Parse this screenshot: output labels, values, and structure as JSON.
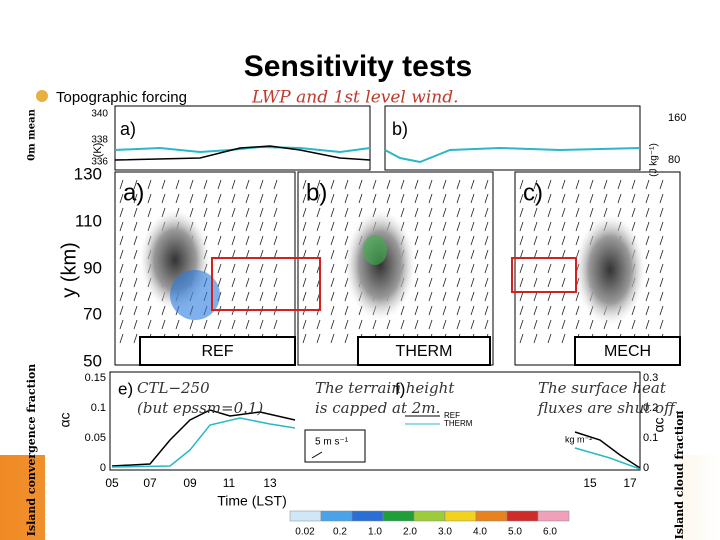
{
  "slide": {
    "title": "Sensitivity tests",
    "bullet": "Topographic forcing",
    "note": "LWP and 1st level wind."
  },
  "figure": {
    "top_panels": {
      "labels": [
        "a)",
        "b)"
      ],
      "left_ticks": [
        "340",
        "338",
        "336"
      ],
      "left_unit": "(K)",
      "right_ticks": [
        "160",
        "80"
      ],
      "right_unit": "(J kg⁻¹)",
      "left_axis_label": "0m mean"
    },
    "map_panels": {
      "y_label": "y (km)",
      "y_ticks": [
        "130",
        "110",
        "90",
        "70",
        "50"
      ],
      "panels": [
        {
          "label": "a)",
          "name": "REF"
        },
        {
          "label": "b)",
          "name": "THERM"
        },
        {
          "label": "c)",
          "name": "MECH"
        }
      ]
    },
    "bottom_panels": {
      "labels": [
        "e)",
        "f)"
      ],
      "left_ticks": [
        "0.15",
        "0.1",
        "0.05",
        "0"
      ],
      "left_symbol": "αc",
      "right_ticks": [
        "0.3",
        "0.2",
        "0.1",
        "0"
      ],
      "right_symbol": "αc",
      "x_label": "Time (LST)",
      "x_ticks": [
        "05",
        "07",
        "09",
        "11",
        "13",
        "15",
        "17"
      ],
      "legend": [
        "REF",
        "THERM"
      ],
      "wind_scale": "5 m s⁻¹",
      "colorbar_unit": "kg m⁻²",
      "colorbar_ticks": [
        "0.02",
        "0.2",
        "1.0",
        "2.0",
        "3.0",
        "4.0",
        "5.0",
        "6.0"
      ]
    },
    "side_labels": {
      "left": "Island convergence fraction",
      "right": "Island cloud fraction"
    }
  },
  "annotations": [
    [
      "CTL−250",
      "(but epssm=0.1)"
    ],
    [
      "The terrain height",
      "is capped at 2m."
    ],
    [
      "The surface heat",
      "fluxes are shut off."
    ]
  ]
}
